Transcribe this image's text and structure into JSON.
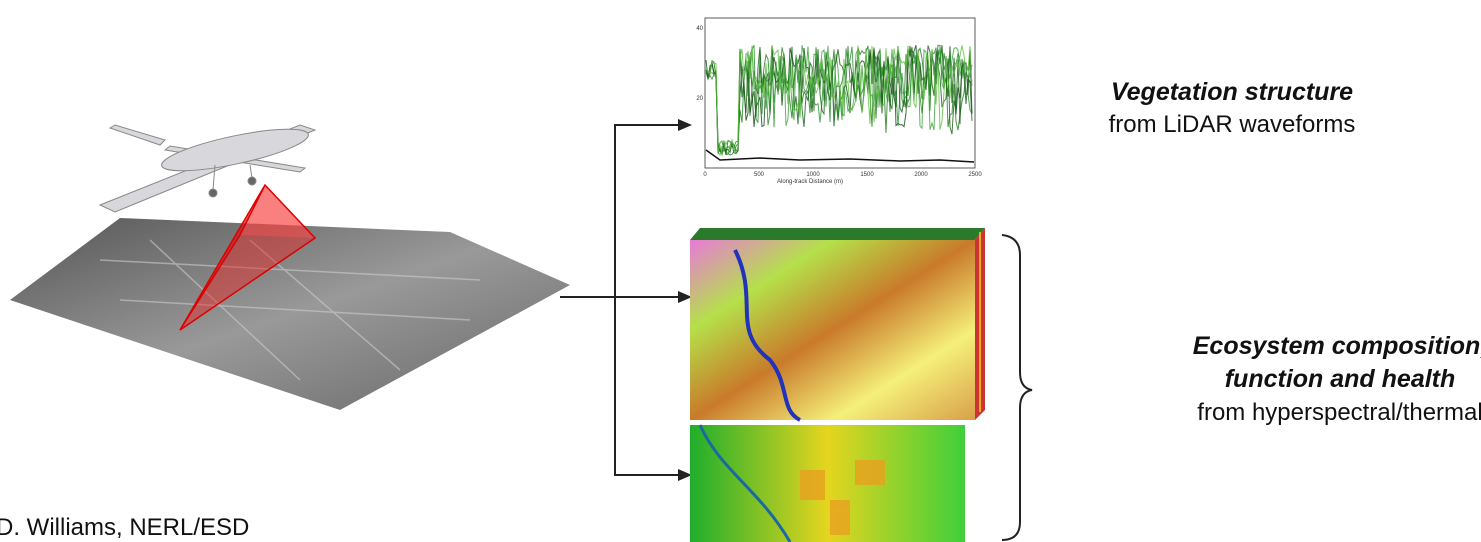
{
  "lidar_plot": {
    "x_ticks": [
      "0",
      "500",
      "1000",
      "1500",
      "2000",
      "2500"
    ],
    "y_ticks": [
      "40",
      "20"
    ],
    "x_label": "Along-track Distance (m)"
  },
  "outputs": {
    "vegetation": {
      "title": "Vegetation structure",
      "subtitle": "from LiDAR waveforms"
    },
    "ecosystem": {
      "title_line1": "Ecosystem composition,",
      "title_line2": "function and health",
      "subtitle": "from hyperspectral/thermal"
    }
  },
  "credit": "D. Williams, NERL/ESD"
}
